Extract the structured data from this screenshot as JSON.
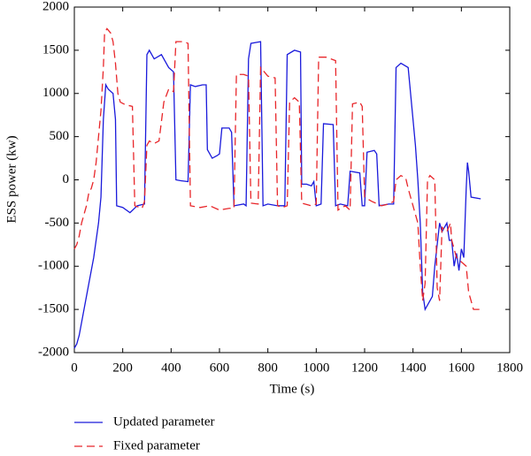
{
  "chart_data": {
    "type": "line",
    "xlabel": "Time (s)",
    "ylabel": "ESS power (kw)",
    "xlim": [
      0,
      1800
    ],
    "xticks": [
      0,
      200,
      400,
      600,
      800,
      1000,
      1200,
      1400,
      1600,
      1800
    ],
    "ylim": [
      -2000,
      2000
    ],
    "yticks": [
      -2000,
      -1500,
      -1000,
      -500,
      0,
      500,
      1000,
      1500,
      2000
    ],
    "legend": "bottom",
    "series": [
      {
        "name": "Updated parameter",
        "color": "#1a1adb",
        "dash": "solid",
        "x": [
          0,
          10,
          20,
          40,
          60,
          80,
          100,
          110,
          120,
          130,
          140,
          160,
          170,
          175,
          200,
          230,
          260,
          290,
          300,
          310,
          330,
          360,
          390,
          410,
          420,
          440,
          470,
          480,
          500,
          530,
          545,
          550,
          570,
          590,
          600,
          610,
          640,
          650,
          660,
          700,
          710,
          720,
          730,
          770,
          780,
          800,
          840,
          870,
          880,
          910,
          935,
          940,
          960,
          980,
          990,
          1000,
          1020,
          1030,
          1070,
          1080,
          1100,
          1130,
          1140,
          1180,
          1190,
          1200,
          1210,
          1240,
          1250,
          1260,
          1300,
          1320,
          1330,
          1350,
          1380,
          1390,
          1400,
          1410,
          1420,
          1430,
          1440,
          1450,
          1470,
          1480,
          1490,
          1510,
          1520,
          1540,
          1550,
          1560,
          1570,
          1580,
          1590,
          1600,
          1610,
          1620,
          1625,
          1630,
          1640,
          1680
        ],
        "values": [
          -1950,
          -1900,
          -1800,
          -1500,
          -1200,
          -900,
          -500,
          -200,
          700,
          1100,
          1050,
          1000,
          700,
          -300,
          -320,
          -380,
          -300,
          -280,
          1450,
          1500,
          1400,
          1450,
          1300,
          1250,
          0,
          -10,
          -20,
          1100,
          1080,
          1100,
          1100,
          350,
          250,
          280,
          300,
          600,
          600,
          550,
          -300,
          -280,
          -300,
          1400,
          1580,
          1600,
          -300,
          -280,
          -300,
          -300,
          1450,
          1500,
          1480,
          -50,
          -50,
          -70,
          -20,
          -300,
          -280,
          650,
          640,
          -300,
          -280,
          -300,
          100,
          80,
          -300,
          -300,
          320,
          340,
          300,
          -300,
          -280,
          -280,
          1300,
          1350,
          1300,
          1000,
          700,
          400,
          0,
          -500,
          -1300,
          -1500,
          -1400,
          -1350,
          -1000,
          -500,
          -600,
          -500,
          -700,
          -700,
          -1000,
          -850,
          -1050,
          -800,
          -900,
          -100,
          200,
          100,
          -200,
          -220
        ]
      },
      {
        "name": "Fixed parameter",
        "color": "#e8262a",
        "dash": "dashed",
        "x": [
          0,
          10,
          20,
          30,
          40,
          50,
          60,
          70,
          80,
          90,
          100,
          110,
          120,
          125,
          135,
          150,
          160,
          170,
          180,
          190,
          210,
          240,
          250,
          280,
          290,
          300,
          310,
          330,
          350,
          370,
          390,
          410,
          420,
          450,
          470,
          480,
          520,
          560,
          600,
          640,
          660,
          670,
          700,
          720,
          730,
          760,
          770,
          800,
          830,
          840,
          860,
          880,
          890,
          910,
          930,
          940,
          980,
          1000,
          1010,
          1040,
          1060,
          1080,
          1090,
          1120,
          1140,
          1150,
          1180,
          1190,
          1200,
          1230,
          1270,
          1300,
          1320,
          1330,
          1350,
          1370,
          1380,
          1400,
          1420,
          1430,
          1440,
          1450,
          1460,
          1470,
          1490,
          1500,
          1510,
          1520,
          1540,
          1555,
          1560,
          1580,
          1600,
          1620,
          1630,
          1640,
          1650,
          1680
        ],
        "values": [
          -800,
          -750,
          -650,
          -500,
          -400,
          -300,
          -150,
          -100,
          0,
          200,
          500,
          800,
          1300,
          1700,
          1750,
          1700,
          1600,
          1350,
          1000,
          900,
          870,
          850,
          -300,
          -330,
          -250,
          400,
          450,
          420,
          450,
          900,
          1050,
          1020,
          1600,
          1600,
          1580,
          -300,
          -320,
          -300,
          -350,
          -330,
          -330,
          1220,
          1220,
          1200,
          -270,
          -280,
          1300,
          1200,
          1180,
          -300,
          -320,
          -300,
          900,
          950,
          900,
          -270,
          -300,
          -280,
          1420,
          1420,
          1400,
          1380,
          -350,
          -300,
          -350,
          880,
          900,
          850,
          -200,
          -250,
          -300,
          -280,
          -250,
          0,
          50,
          20,
          -100,
          -300,
          -500,
          -1000,
          -1400,
          -1200,
          0,
          50,
          0,
          -1250,
          -1400,
          -550,
          -600,
          -500,
          -700,
          -900,
          -950,
          -1000,
          -1300,
          -1400,
          -1500,
          -1500
        ]
      }
    ]
  }
}
